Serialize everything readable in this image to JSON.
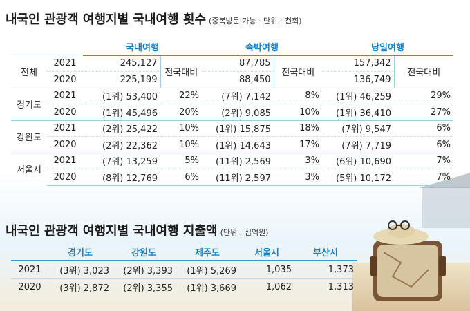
{
  "title1": "내국인 관광객 여행지별 국내여행 횟수",
  "title1_unit": "(중복방문 가능 · 단위 : 천회)",
  "t1": {
    "categories": [
      "국내여행",
      "숙박여행",
      "당일여행"
    ],
    "ratio_label": "전국대비",
    "total": {
      "region": "전체",
      "rows": [
        {
          "year": "2021",
          "v": [
            "245,127",
            "87,785",
            "157,342"
          ]
        },
        {
          "year": "2020",
          "v": [
            "225,199",
            "88,450",
            "136,749"
          ]
        }
      ]
    },
    "regions": [
      {
        "name": "경기도",
        "rows": [
          {
            "year": "2021",
            "cells": [
              [
                "(1위) 53,400",
                "22%"
              ],
              [
                "(7위) 7,142",
                "8%"
              ],
              [
                "(1위) 46,259",
                "29%"
              ]
            ]
          },
          {
            "year": "2020",
            "cells": [
              [
                "(1위) 45,496",
                "20%"
              ],
              [
                "(2위) 9,085",
                "10%"
              ],
              [
                "(1위) 36,410",
                "27%"
              ]
            ]
          }
        ]
      },
      {
        "name": "강원도",
        "rows": [
          {
            "year": "2021",
            "cells": [
              [
                "(2위) 25,422",
                "10%"
              ],
              [
                "(1위) 15,875",
                "18%"
              ],
              [
                "(7위) 9,547",
                "6%"
              ]
            ]
          },
          {
            "year": "2020",
            "cells": [
              [
                "(2위) 22,362",
                "10%"
              ],
              [
                "(1위) 14,643",
                "17%"
              ],
              [
                "(7위) 7,719",
                "6%"
              ]
            ]
          }
        ]
      },
      {
        "name": "서울시",
        "rows": [
          {
            "year": "2021",
            "cells": [
              [
                "(7위) 13,259",
                "5%"
              ],
              [
                "(11위) 2,569",
                "3%"
              ],
              [
                "(6위) 10,690",
                "7%"
              ]
            ]
          },
          {
            "year": "2020",
            "cells": [
              [
                "(8위) 12,769",
                "6%"
              ],
              [
                "(11위) 2,597",
                "3%"
              ],
              [
                "(5위) 10,172",
                "7%"
              ]
            ]
          }
        ]
      }
    ]
  },
  "title2": "내국인 관광객 여행지별 국내여행 지출액",
  "title2_unit": "(단위 : 십억원)",
  "t2": {
    "headers": [
      "경기도",
      "강원도",
      "제주도",
      "서울시",
      "부산시"
    ],
    "rows": [
      {
        "year": "2021",
        "v": [
          "(3위) 3,023",
          "(2위) 3,393",
          "(1위) 5,269",
          "1,035",
          "1,373"
        ]
      },
      {
        "year": "2020",
        "v": [
          "(3위) 2,872",
          "(2위) 3,355",
          "(1위) 3,669",
          "1,062",
          "1,313"
        ]
      }
    ]
  },
  "colors": {
    "header_blue": "#1a7fbf",
    "rule_blue": "#2e9ad6",
    "line": "#9fcbe3"
  }
}
